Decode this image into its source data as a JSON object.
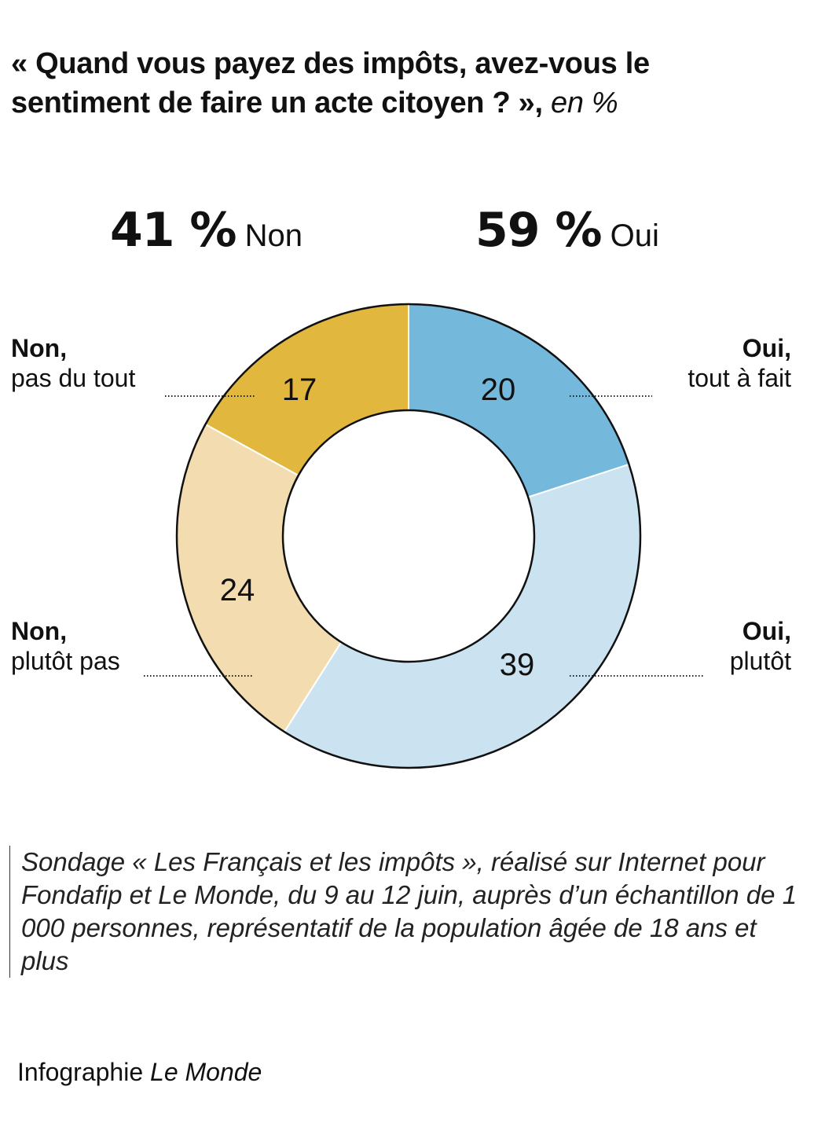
{
  "title_main": "« Quand vous payez des impôts, avez-vous le sentiment de faire un acte citoyen ? »,",
  "title_unit": "en %",
  "totals": [
    {
      "value": "41 %",
      "label": "Non"
    },
    {
      "value": "59 %",
      "label": "Oui"
    }
  ],
  "chart_data": {
    "type": "pie",
    "donut": true,
    "unit": "%",
    "start": "top",
    "direction": "clockwise",
    "slices": [
      {
        "label_bold": "Oui,",
        "label": "tout à fait",
        "value": 20,
        "color": "#74b8db"
      },
      {
        "label_bold": "Oui,",
        "label": "plutôt",
        "value": 39,
        "color": "#cbe3f1"
      },
      {
        "label_bold": "Non,",
        "label": "plutôt pas",
        "value": 24,
        "color": "#f3ddb0"
      },
      {
        "label_bold": "Non,",
        "label": "pas du tout",
        "value": 17,
        "color": "#e2b73d"
      }
    ]
  },
  "source": "Sondage « Les Français et les impôts », réalisé sur Internet pour Fondafip et Le Monde, du 9 au 12 juin, auprès d’un échantillon de 1 000 personnes, représentatif de la population âgée de 18 ans et plus",
  "credit": "Infographie",
  "credit_brand": "Le Monde"
}
